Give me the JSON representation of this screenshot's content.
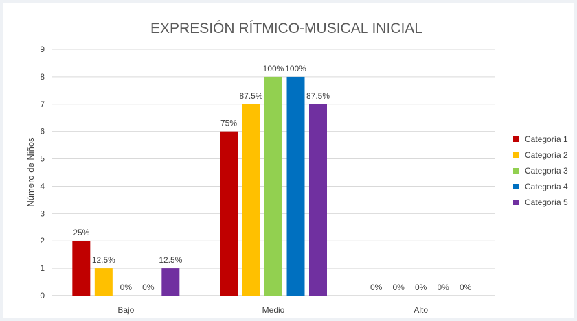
{
  "chart_data": {
    "type": "bar",
    "title": "EXPRESIÓN RÍTMICO-MUSICAL INICIAL",
    "xlabel": "",
    "ylabel": "Número de Niños",
    "ylim": [
      0,
      9
    ],
    "yticks": [
      0,
      1,
      2,
      3,
      4,
      5,
      6,
      7,
      8,
      9
    ],
    "grid": true,
    "legend_position": "right",
    "categories": [
      "Bajo",
      "Medio",
      "Alto"
    ],
    "series": [
      {
        "name": "Categoría 1",
        "color": "#c00000",
        "values": [
          2,
          6,
          0
        ],
        "labels": [
          "25%",
          "75%",
          "0%"
        ]
      },
      {
        "name": "Categoría 2",
        "color": "#ffc000",
        "values": [
          1,
          7,
          0
        ],
        "labels": [
          "12.5%",
          "87.5%",
          "0%"
        ]
      },
      {
        "name": "Categoría 3",
        "color": "#92d050",
        "values": [
          0,
          8,
          0
        ],
        "labels": [
          "0%",
          "100%",
          "0%"
        ]
      },
      {
        "name": "Categoría 4",
        "color": "#0070c0",
        "values": [
          0,
          8,
          0
        ],
        "labels": [
          "0%",
          "100%",
          "0%"
        ]
      },
      {
        "name": "Categoría 5",
        "color": "#7030a0",
        "values": [
          1,
          7,
          0
        ],
        "labels": [
          "12.5%",
          "87.5%",
          "0%"
        ]
      }
    ]
  }
}
